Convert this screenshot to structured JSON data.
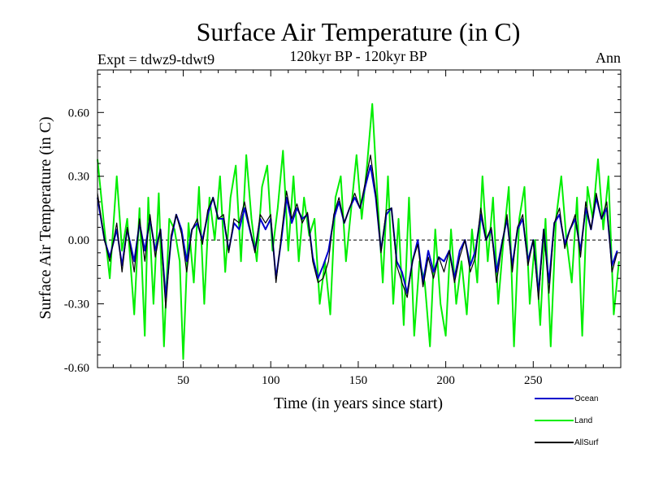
{
  "chart_data": {
    "type": "line",
    "title": "Surface Air Temperature (in C)",
    "subtitle": "120kyr BP - 120kyr BP",
    "left_annotation": "Expt = tdwz9-tdwt9",
    "right_annotation": "Ann",
    "xlabel": "Time (in years since start)",
    "ylabel": "Surface Air Temperature (in C)",
    "xlim": [
      1,
      300
    ],
    "ylim": [
      -0.6,
      0.8
    ],
    "xticks": [
      50,
      100,
      150,
      200,
      250
    ],
    "xtick_labels": [
      "50",
      "100",
      "150",
      "200",
      "250"
    ],
    "yticks": [
      -0.6,
      -0.3,
      0.0,
      0.3,
      0.6
    ],
    "ytick_labels": [
      "-0.60",
      "-0.30",
      "0.00",
      "0.30",
      "0.60"
    ],
    "zero_line": true,
    "grid": false,
    "legend_position": "bottom-right, below plot",
    "colors": {
      "Ocean": "#0000cc",
      "Land": "#00ee00",
      "AllSurf": "#000000"
    },
    "series": [
      {
        "name": "Land",
        "points": [
          [
            1,
            0.38
          ],
          [
            5,
            0.05
          ],
          [
            8,
            -0.18
          ],
          [
            12,
            0.3
          ],
          [
            15,
            -0.05
          ],
          [
            18,
            0.1
          ],
          [
            22,
            -0.35
          ],
          [
            25,
            0.15
          ],
          [
            28,
            -0.45
          ],
          [
            30,
            0.2
          ],
          [
            33,
            -0.3
          ],
          [
            36,
            0.22
          ],
          [
            39,
            -0.5
          ],
          [
            42,
            0.1
          ],
          [
            45,
            0.05
          ],
          [
            48,
            -0.1
          ],
          [
            50,
            -0.56
          ],
          [
            53,
            0.08
          ],
          [
            56,
            -0.2
          ],
          [
            59,
            0.25
          ],
          [
            62,
            -0.3
          ],
          [
            65,
            0.2
          ],
          [
            68,
            0.0
          ],
          [
            71,
            0.3
          ],
          [
            74,
            -0.15
          ],
          [
            77,
            0.2
          ],
          [
            80,
            0.35
          ],
          [
            83,
            -0.1
          ],
          [
            86,
            0.4
          ],
          [
            89,
            0.1
          ],
          [
            92,
            -0.1
          ],
          [
            95,
            0.25
          ],
          [
            98,
            0.35
          ],
          [
            101,
            -0.05
          ],
          [
            104,
            0.15
          ],
          [
            107,
            0.42
          ],
          [
            110,
            -0.05
          ],
          [
            113,
            0.3
          ],
          [
            116,
            -0.1
          ],
          [
            119,
            0.2
          ],
          [
            122,
            0.02
          ],
          [
            125,
            0.1
          ],
          [
            128,
            -0.3
          ],
          [
            131,
            -0.1
          ],
          [
            134,
            -0.35
          ],
          [
            137,
            0.2
          ],
          [
            140,
            0.3
          ],
          [
            143,
            -0.1
          ],
          [
            146,
            0.15
          ],
          [
            149,
            0.4
          ],
          [
            152,
            0.1
          ],
          [
            155,
            0.35
          ],
          [
            158,
            0.64
          ],
          [
            161,
            0.2
          ],
          [
            164,
            -0.2
          ],
          [
            167,
            0.3
          ],
          [
            170,
            -0.3
          ],
          [
            173,
            0.1
          ],
          [
            176,
            -0.4
          ],
          [
            179,
            0.2
          ],
          [
            182,
            -0.45
          ],
          [
            185,
            -0.1
          ],
          [
            188,
            -0.2
          ],
          [
            191,
            -0.5
          ],
          [
            194,
            0.05
          ],
          [
            197,
            -0.3
          ],
          [
            200,
            -0.45
          ],
          [
            203,
            0.05
          ],
          [
            206,
            -0.3
          ],
          [
            209,
            -0.1
          ],
          [
            212,
            -0.35
          ],
          [
            215,
            0.05
          ],
          [
            218,
            -0.2
          ],
          [
            221,
            0.3
          ],
          [
            224,
            -0.1
          ],
          [
            227,
            0.2
          ],
          [
            230,
            -0.3
          ],
          [
            233,
            0.0
          ],
          [
            236,
            0.25
          ],
          [
            239,
            -0.5
          ],
          [
            242,
            0.1
          ],
          [
            245,
            0.25
          ],
          [
            248,
            -0.3
          ],
          [
            251,
            0.0
          ],
          [
            254,
            -0.4
          ],
          [
            257,
            0.1
          ],
          [
            260,
            -0.5
          ],
          [
            263,
            0.1
          ],
          [
            266,
            0.3
          ],
          [
            269,
            0.0
          ],
          [
            272,
            -0.2
          ],
          [
            275,
            0.2
          ],
          [
            278,
            -0.45
          ],
          [
            281,
            0.25
          ],
          [
            284,
            0.1
          ],
          [
            287,
            0.38
          ],
          [
            290,
            0.05
          ],
          [
            293,
            0.3
          ],
          [
            296,
            -0.35
          ],
          [
            299,
            -0.1
          ]
        ]
      },
      {
        "name": "Ocean",
        "points": [
          [
            1,
            0.2
          ],
          [
            5,
            0.0
          ],
          [
            8,
            -0.08
          ],
          [
            12,
            0.05
          ],
          [
            15,
            -0.12
          ],
          [
            18,
            0.05
          ],
          [
            22,
            -0.1
          ],
          [
            25,
            0.08
          ],
          [
            28,
            -0.05
          ],
          [
            31,
            0.1
          ],
          [
            34,
            -0.05
          ],
          [
            37,
            0.05
          ],
          [
            40,
            -0.27
          ],
          [
            43,
            0.0
          ],
          [
            46,
            0.12
          ],
          [
            49,
            0.05
          ],
          [
            52,
            -0.1
          ],
          [
            55,
            0.05
          ],
          [
            58,
            0.08
          ],
          [
            61,
            0.0
          ],
          [
            64,
            0.12
          ],
          [
            67,
            0.2
          ],
          [
            70,
            0.1
          ],
          [
            73,
            0.1
          ],
          [
            76,
            -0.05
          ],
          [
            79,
            0.08
          ],
          [
            82,
            0.05
          ],
          [
            85,
            0.15
          ],
          [
            88,
            0.05
          ],
          [
            91,
            -0.05
          ],
          [
            94,
            0.1
          ],
          [
            97,
            0.05
          ],
          [
            100,
            0.1
          ],
          [
            103,
            -0.18
          ],
          [
            106,
            0.0
          ],
          [
            109,
            0.2
          ],
          [
            112,
            0.08
          ],
          [
            115,
            0.15
          ],
          [
            118,
            0.1
          ],
          [
            121,
            0.12
          ],
          [
            124,
            -0.08
          ],
          [
            127,
            -0.18
          ],
          [
            130,
            -0.12
          ],
          [
            133,
            -0.05
          ],
          [
            136,
            0.1
          ],
          [
            139,
            0.18
          ],
          [
            142,
            0.08
          ],
          [
            145,
            0.15
          ],
          [
            148,
            0.2
          ],
          [
            151,
            0.15
          ],
          [
            154,
            0.25
          ],
          [
            157,
            0.35
          ],
          [
            160,
            0.2
          ],
          [
            163,
            -0.05
          ],
          [
            166,
            0.12
          ],
          [
            169,
            0.15
          ],
          [
            172,
            -0.1
          ],
          [
            175,
            -0.15
          ],
          [
            178,
            -0.25
          ],
          [
            181,
            -0.1
          ],
          [
            184,
            0.0
          ],
          [
            187,
            -0.2
          ],
          [
            190,
            -0.05
          ],
          [
            193,
            -0.15
          ],
          [
            196,
            -0.08
          ],
          [
            199,
            -0.1
          ],
          [
            202,
            -0.05
          ],
          [
            205,
            -0.18
          ],
          [
            208,
            -0.05
          ],
          [
            211,
            0.0
          ],
          [
            214,
            -0.12
          ],
          [
            217,
            -0.05
          ],
          [
            220,
            0.12
          ],
          [
            223,
            0.0
          ],
          [
            226,
            0.05
          ],
          [
            229,
            -0.15
          ],
          [
            232,
            -0.02
          ],
          [
            235,
            0.1
          ],
          [
            238,
            -0.12
          ],
          [
            241,
            0.05
          ],
          [
            244,
            0.1
          ],
          [
            247,
            -0.1
          ],
          [
            250,
            0.0
          ],
          [
            253,
            -0.25
          ],
          [
            256,
            0.05
          ],
          [
            259,
            -0.2
          ],
          [
            262,
            0.08
          ],
          [
            265,
            0.12
          ],
          [
            268,
            -0.02
          ],
          [
            271,
            0.05
          ],
          [
            274,
            0.1
          ],
          [
            277,
            -0.05
          ],
          [
            280,
            0.15
          ],
          [
            283,
            0.05
          ],
          [
            286,
            0.2
          ],
          [
            289,
            0.1
          ],
          [
            292,
            0.15
          ],
          [
            295,
            -0.12
          ],
          [
            298,
            -0.05
          ]
        ]
      },
      {
        "name": "AllSurf",
        "points": [
          [
            1,
            0.22
          ],
          [
            5,
            0.0
          ],
          [
            8,
            -0.1
          ],
          [
            12,
            0.08
          ],
          [
            15,
            -0.15
          ],
          [
            18,
            0.06
          ],
          [
            22,
            -0.15
          ],
          [
            25,
            0.1
          ],
          [
            28,
            -0.1
          ],
          [
            31,
            0.12
          ],
          [
            34,
            -0.08
          ],
          [
            37,
            0.05
          ],
          [
            40,
            -0.32
          ],
          [
            43,
            0.02
          ],
          [
            46,
            0.12
          ],
          [
            49,
            0.03
          ],
          [
            52,
            -0.15
          ],
          [
            55,
            0.05
          ],
          [
            58,
            0.1
          ],
          [
            61,
            -0.02
          ],
          [
            64,
            0.14
          ],
          [
            67,
            0.2
          ],
          [
            70,
            0.1
          ],
          [
            73,
            0.12
          ],
          [
            76,
            -0.06
          ],
          [
            79,
            0.1
          ],
          [
            82,
            0.08
          ],
          [
            85,
            0.18
          ],
          [
            88,
            0.06
          ],
          [
            91,
            -0.06
          ],
          [
            94,
            0.12
          ],
          [
            97,
            0.08
          ],
          [
            100,
            0.12
          ],
          [
            103,
            -0.2
          ],
          [
            106,
            0.02
          ],
          [
            109,
            0.23
          ],
          [
            112,
            0.1
          ],
          [
            115,
            0.17
          ],
          [
            118,
            0.08
          ],
          [
            121,
            0.13
          ],
          [
            124,
            -0.1
          ],
          [
            127,
            -0.2
          ],
          [
            130,
            -0.18
          ],
          [
            133,
            -0.1
          ],
          [
            136,
            0.12
          ],
          [
            139,
            0.2
          ],
          [
            142,
            0.08
          ],
          [
            145,
            0.15
          ],
          [
            148,
            0.22
          ],
          [
            151,
            0.15
          ],
          [
            154,
            0.27
          ],
          [
            157,
            0.4
          ],
          [
            160,
            0.22
          ],
          [
            163,
            -0.06
          ],
          [
            166,
            0.14
          ],
          [
            169,
            0.15
          ],
          [
            172,
            -0.12
          ],
          [
            175,
            -0.2
          ],
          [
            178,
            -0.27
          ],
          [
            181,
            -0.1
          ],
          [
            184,
            -0.02
          ],
          [
            187,
            -0.22
          ],
          [
            190,
            -0.08
          ],
          [
            193,
            -0.18
          ],
          [
            196,
            -0.08
          ],
          [
            199,
            -0.15
          ],
          [
            202,
            -0.05
          ],
          [
            205,
            -0.2
          ],
          [
            208,
            -0.08
          ],
          [
            211,
            0.0
          ],
          [
            214,
            -0.15
          ],
          [
            217,
            -0.08
          ],
          [
            220,
            0.15
          ],
          [
            223,
            0.0
          ],
          [
            226,
            0.06
          ],
          [
            229,
            -0.2
          ],
          [
            232,
            -0.03
          ],
          [
            235,
            0.12
          ],
          [
            238,
            -0.15
          ],
          [
            241,
            0.06
          ],
          [
            244,
            0.12
          ],
          [
            247,
            -0.12
          ],
          [
            250,
            0.0
          ],
          [
            253,
            -0.28
          ],
          [
            256,
            0.05
          ],
          [
            259,
            -0.25
          ],
          [
            262,
            0.08
          ],
          [
            265,
            0.15
          ],
          [
            268,
            -0.04
          ],
          [
            271,
            0.05
          ],
          [
            274,
            0.12
          ],
          [
            277,
            -0.08
          ],
          [
            280,
            0.18
          ],
          [
            283,
            0.05
          ],
          [
            286,
            0.22
          ],
          [
            289,
            0.1
          ],
          [
            292,
            0.18
          ],
          [
            295,
            -0.15
          ],
          [
            298,
            -0.06
          ]
        ]
      }
    ],
    "legend": [
      {
        "name": "Ocean",
        "color": "#0000cc"
      },
      {
        "name": "Land",
        "color": "#00ee00"
      },
      {
        "name": "AllSurf",
        "color": "#000000"
      }
    ]
  }
}
